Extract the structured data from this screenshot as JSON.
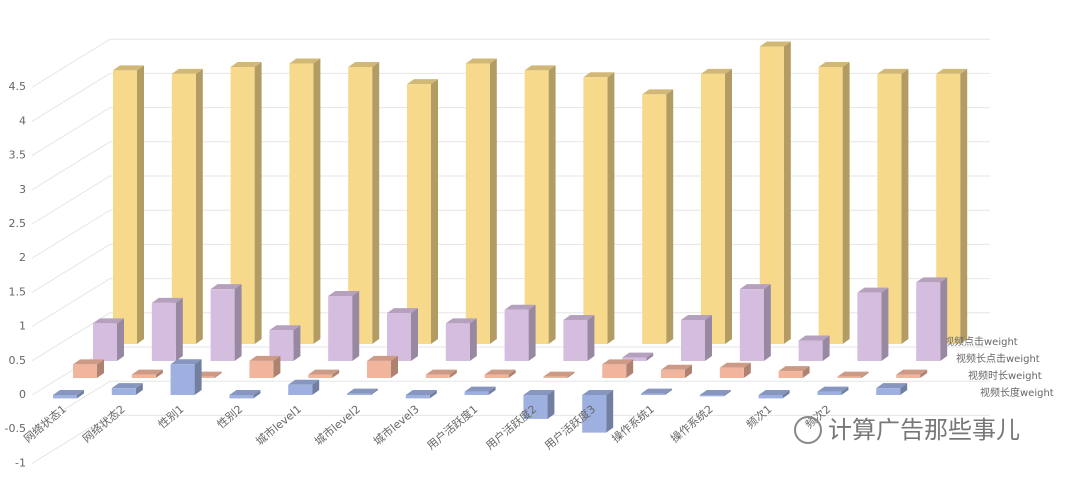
{
  "chart_data": {
    "type": "bar3d",
    "categories": [
      "网络状态1",
      "网络状态2",
      "性别1",
      "性别2",
      "城市level1",
      "城市level2",
      "城市level3",
      "用户活跃度1",
      "用户活跃度2",
      "用户活跃度3",
      "操作系统1",
      "操作系统2",
      "频次1",
      "频次2",
      null
    ],
    "series": [
      {
        "name": "视频点击weight",
        "color": "#f7d98b",
        "values": [
          4.0,
          3.95,
          4.05,
          4.1,
          4.05,
          3.8,
          4.1,
          4.0,
          3.9,
          3.65,
          3.95,
          4.35,
          4.05,
          3.95,
          3.95
        ]
      },
      {
        "name": "视频长点击weight",
        "color": "#d5bde0",
        "values": [
          0.55,
          0.85,
          1.05,
          0.45,
          0.95,
          0.7,
          0.55,
          0.75,
          0.6,
          0.05,
          0.6,
          1.05,
          0.3,
          1.0,
          1.15
        ]
      },
      {
        "name": "视频时长weight",
        "color": "#f0b59c",
        "values": [
          0.2,
          0.05,
          0.02,
          0.25,
          0.05,
          0.25,
          0.05,
          0.05,
          0.02,
          0.2,
          0.12,
          0.15,
          0.1,
          0.02,
          0.05
        ]
      },
      {
        "name": "视频长度weight",
        "color": "#9eb0e0",
        "values": [
          -0.05,
          0.1,
          0.45,
          -0.05,
          0.15,
          0.02,
          -0.05,
          0.05,
          -0.35,
          -0.55,
          0.02,
          -0.02,
          -0.05,
          0.05,
          0.1
        ]
      }
    ],
    "ylim": [
      -1,
      5
    ],
    "yticks": [
      -1,
      -0.5,
      0,
      0.5,
      1,
      1.5,
      2,
      2.5,
      3,
      3.5,
      4,
      4.5
    ],
    "grid": true,
    "legend": "right"
  },
  "watermark": "计算广告那些事儿"
}
